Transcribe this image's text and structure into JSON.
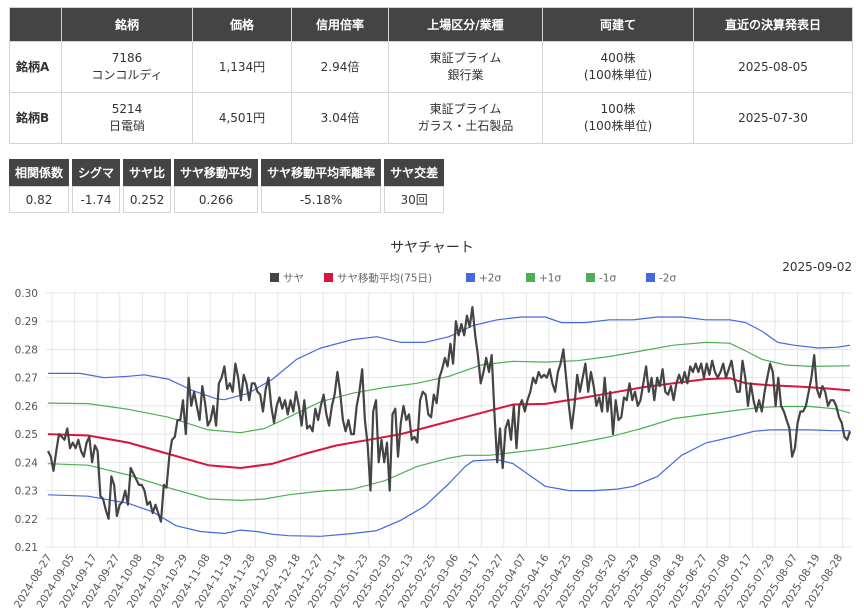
{
  "stock_table": {
    "headers": [
      "",
      "銘柄",
      "価格",
      "信用倍率",
      "上場区分/業種",
      "両建て",
      "直近の決算発表日"
    ],
    "rows": [
      {
        "label": "銘柄A",
        "code": "7186",
        "name": "コンコルディ",
        "price": "1,134円",
        "margin_ratio": "2.94倍",
        "market": "東証プライム",
        "industry": "銀行業",
        "hedge": "400株",
        "hedge_unit": "(100株単位)",
        "earnings_date": "2025-08-05"
      },
      {
        "label": "銘柄B",
        "code": "5214",
        "name": "日電硝",
        "price": "4,501円",
        "margin_ratio": "3.04倍",
        "market": "東証プライム",
        "industry": "ガラス・土石製品",
        "hedge": "100株",
        "hedge_unit": "(100株単位)",
        "earnings_date": "2025-07-30"
      }
    ]
  },
  "stats": [
    {
      "label": "相関係数",
      "value": "0.82"
    },
    {
      "label": "シグマ",
      "value": "-1.74"
    },
    {
      "label": "サヤ比",
      "value": "0.252"
    },
    {
      "label": "サヤ移動平均",
      "value": "0.266"
    },
    {
      "label": "サヤ移動平均乖離率",
      "value": "-5.18%"
    },
    {
      "label": "サヤ交差",
      "value": "30回"
    }
  ],
  "chart_data": {
    "type": "line",
    "title": "サヤチャート",
    "date_label": "2025-09-02",
    "ylim": [
      0.21,
      0.3
    ],
    "yticks": [
      "0.21",
      "0.22",
      "0.23",
      "0.24",
      "0.25",
      "0.26",
      "0.27",
      "0.28",
      "0.29",
      "0.30"
    ],
    "xticks": [
      "2024-08-27",
      "2024-09-05",
      "2024-09-17",
      "2024-09-27",
      "2024-10-08",
      "2024-10-18",
      "2024-10-29",
      "2024-11-08",
      "2024-11-19",
      "2024-11-28",
      "2024-12-09",
      "2024-12-18",
      "2024-12-27",
      "2025-01-14",
      "2025-01-23",
      "2025-02-03",
      "2025-02-13",
      "2025-02-25",
      "2025-03-06",
      "2025-03-17",
      "2025-03-27",
      "2025-04-07",
      "2025-04-16",
      "2025-04-25",
      "2025-05-09",
      "2025-05-20",
      "2025-05-29",
      "2025-06-09",
      "2025-06-18",
      "2025-06-27",
      "2025-07-08",
      "2025-07-17",
      "2025-07-29",
      "2025-08-07",
      "2025-08-19",
      "2025-08-28"
    ],
    "legend": [
      {
        "name": "サヤ",
        "color": "#444444"
      },
      {
        "name": "サヤ移動平均(75日)",
        "color": "#dc143c"
      },
      {
        "name": "+2σ",
        "color": "#4169e1"
      },
      {
        "name": "+1σ",
        "color": "#4caf50"
      },
      {
        "name": "-1σ",
        "color": "#4caf50"
      },
      {
        "name": "-2σ",
        "color": "#4169e1"
      }
    ],
    "series": [
      {
        "key": "saya",
        "color": "#444444",
        "width": 2.2,
        "values": [
          0.244,
          0.242,
          0.237,
          0.244,
          0.25,
          0.249,
          0.248,
          0.252,
          0.245,
          0.247,
          0.245,
          0.248,
          0.244,
          0.242,
          0.247,
          0.249,
          0.24,
          0.246,
          0.244,
          0.228,
          0.227,
          0.223,
          0.22,
          0.235,
          0.232,
          0.221,
          0.225,
          0.226,
          0.23,
          0.225,
          0.238,
          0.236,
          0.234,
          0.232,
          0.232,
          0.23,
          0.225,
          0.226,
          0.222,
          0.225,
          0.222,
          0.219,
          0.232,
          0.231,
          0.242,
          0.248,
          0.249,
          0.255,
          0.255,
          0.262,
          0.25,
          0.27,
          0.26,
          0.265,
          0.26,
          0.255,
          0.267,
          0.261,
          0.253,
          0.255,
          0.26,
          0.253,
          0.268,
          0.27,
          0.274,
          0.266,
          0.268,
          0.265,
          0.275,
          0.27,
          0.262,
          0.271,
          0.268,
          0.262,
          0.268,
          0.268,
          0.265,
          0.264,
          0.258,
          0.266,
          0.27,
          0.26,
          0.254,
          0.26,
          0.263,
          0.259,
          0.262,
          0.257,
          0.262,
          0.258,
          0.265,
          0.26,
          0.253,
          0.262,
          0.252,
          0.253,
          0.251,
          0.259,
          0.255,
          0.26,
          0.264,
          0.257,
          0.253,
          0.26,
          0.264,
          0.272,
          0.265,
          0.255,
          0.251,
          0.255,
          0.25,
          0.25,
          0.26,
          0.265,
          0.273,
          0.255,
          0.246,
          0.23,
          0.258,
          0.262,
          0.24,
          0.248,
          0.24,
          0.247,
          0.23,
          0.257,
          0.259,
          0.242,
          0.254,
          0.26,
          0.255,
          0.257,
          0.248,
          0.249,
          0.247,
          0.262,
          0.265,
          0.264,
          0.257,
          0.256,
          0.264,
          0.261,
          0.27,
          0.273,
          0.277,
          0.274,
          0.282,
          0.275,
          0.29,
          0.285,
          0.289,
          0.285,
          0.292,
          0.288,
          0.295,
          0.285,
          0.278,
          0.268,
          0.272,
          0.277,
          0.272,
          0.278,
          0.257,
          0.24,
          0.252,
          0.238,
          0.252,
          0.255,
          0.248,
          0.26,
          0.245,
          0.26,
          0.262,
          0.258,
          0.262,
          0.265,
          0.27,
          0.268,
          0.272,
          0.27,
          0.271,
          0.27,
          0.273,
          0.268,
          0.265,
          0.272,
          0.275,
          0.28,
          0.27,
          0.26,
          0.252,
          0.26,
          0.271,
          0.265,
          0.27,
          0.275,
          0.265,
          0.272,
          0.267,
          0.26,
          0.263,
          0.258,
          0.27,
          0.258,
          0.265,
          0.25,
          0.262,
          0.255,
          0.256,
          0.263,
          0.262,
          0.268,
          0.262,
          0.265,
          0.26,
          0.262,
          0.268,
          0.274,
          0.265,
          0.27,
          0.262,
          0.27,
          0.267,
          0.273,
          0.265,
          0.264,
          0.267,
          0.262,
          0.268,
          0.271,
          0.268,
          0.272,
          0.268,
          0.274,
          0.272,
          0.275,
          0.272,
          0.275,
          0.27,
          0.275,
          0.271,
          0.276,
          0.272,
          0.27,
          0.272,
          0.275,
          0.27,
          0.273,
          0.276,
          0.27,
          0.265,
          0.265,
          0.276,
          0.27,
          0.26,
          0.268,
          0.262,
          0.258,
          0.262,
          0.258,
          0.265,
          0.27,
          0.275,
          0.272,
          0.26,
          0.27,
          0.26,
          0.258,
          0.255,
          0.252,
          0.242,
          0.245,
          0.254,
          0.258,
          0.258,
          0.26,
          0.265,
          0.27,
          0.278,
          0.266,
          0.263,
          0.267,
          0.265,
          0.26,
          0.262,
          0.262,
          0.26,
          0.256,
          0.254,
          0.249,
          0.248,
          0.251
        ]
      },
      {
        "key": "ma",
        "color": "#dc143c",
        "width": 2,
        "anchors": [
          [
            0,
            0.25
          ],
          [
            0.05,
            0.2495
          ],
          [
            0.1,
            0.247
          ],
          [
            0.15,
            0.243
          ],
          [
            0.2,
            0.239
          ],
          [
            0.24,
            0.238
          ],
          [
            0.28,
            0.2395
          ],
          [
            0.32,
            0.243
          ],
          [
            0.36,
            0.246
          ],
          [
            0.4,
            0.248
          ],
          [
            0.44,
            0.25
          ],
          [
            0.48,
            0.253
          ],
          [
            0.52,
            0.256
          ],
          [
            0.56,
            0.259
          ],
          [
            0.58,
            0.2605
          ],
          [
            0.62,
            0.2607
          ],
          [
            0.66,
            0.2625
          ],
          [
            0.7,
            0.2645
          ],
          [
            0.74,
            0.2665
          ],
          [
            0.78,
            0.268
          ],
          [
            0.82,
            0.2695
          ],
          [
            0.85,
            0.2698
          ],
          [
            0.87,
            0.268
          ],
          [
            0.9,
            0.2673
          ],
          [
            0.94,
            0.2668
          ],
          [
            0.97,
            0.2662
          ],
          [
            1.0,
            0.2655
          ]
        ]
      },
      {
        "key": "p2",
        "color": "#4169e1",
        "width": 1.2,
        "anchors": [
          [
            0,
            0.2715
          ],
          [
            0.04,
            0.2715
          ],
          [
            0.07,
            0.27
          ],
          [
            0.1,
            0.2705
          ],
          [
            0.12,
            0.271
          ],
          [
            0.15,
            0.2695
          ],
          [
            0.18,
            0.2655
          ],
          [
            0.21,
            0.2625
          ],
          [
            0.22,
            0.2622
          ],
          [
            0.25,
            0.2645
          ],
          [
            0.28,
            0.2695
          ],
          [
            0.31,
            0.2765
          ],
          [
            0.34,
            0.2805
          ],
          [
            0.38,
            0.2835
          ],
          [
            0.41,
            0.2845
          ],
          [
            0.44,
            0.2825
          ],
          [
            0.47,
            0.2825
          ],
          [
            0.5,
            0.2845
          ],
          [
            0.53,
            0.2885
          ],
          [
            0.56,
            0.2905
          ],
          [
            0.59,
            0.2915
          ],
          [
            0.62,
            0.2915
          ],
          [
            0.64,
            0.2895
          ],
          [
            0.67,
            0.2895
          ],
          [
            0.7,
            0.2905
          ],
          [
            0.73,
            0.2905
          ],
          [
            0.76,
            0.2915
          ],
          [
            0.79,
            0.2915
          ],
          [
            0.82,
            0.2905
          ],
          [
            0.85,
            0.2905
          ],
          [
            0.87,
            0.2895
          ],
          [
            0.89,
            0.2865
          ],
          [
            0.91,
            0.2825
          ],
          [
            0.93,
            0.2815
          ],
          [
            0.96,
            0.2805
          ],
          [
            0.985,
            0.2808
          ],
          [
            1.0,
            0.2815
          ]
        ]
      },
      {
        "key": "p1",
        "color": "#4caf50",
        "width": 1.2,
        "anchors": [
          [
            0,
            0.261
          ],
          [
            0.05,
            0.2608
          ],
          [
            0.1,
            0.2588
          ],
          [
            0.15,
            0.256
          ],
          [
            0.2,
            0.2515
          ],
          [
            0.24,
            0.2505
          ],
          [
            0.27,
            0.252
          ],
          [
            0.3,
            0.256
          ],
          [
            0.34,
            0.2615
          ],
          [
            0.38,
            0.2645
          ],
          [
            0.42,
            0.2665
          ],
          [
            0.46,
            0.268
          ],
          [
            0.5,
            0.2705
          ],
          [
            0.54,
            0.2745
          ],
          [
            0.58,
            0.2758
          ],
          [
            0.62,
            0.2755
          ],
          [
            0.66,
            0.276
          ],
          [
            0.7,
            0.2775
          ],
          [
            0.74,
            0.2795
          ],
          [
            0.78,
            0.2815
          ],
          [
            0.82,
            0.2825
          ],
          [
            0.85,
            0.2822
          ],
          [
            0.87,
            0.2795
          ],
          [
            0.89,
            0.2765
          ],
          [
            0.92,
            0.2745
          ],
          [
            0.95,
            0.274
          ],
          [
            1.0,
            0.2742
          ]
        ]
      },
      {
        "key": "m1",
        "color": "#4caf50",
        "width": 1.2,
        "anchors": [
          [
            0,
            0.2395
          ],
          [
            0.05,
            0.239
          ],
          [
            0.1,
            0.2355
          ],
          [
            0.15,
            0.231
          ],
          [
            0.2,
            0.227
          ],
          [
            0.24,
            0.2265
          ],
          [
            0.27,
            0.227
          ],
          [
            0.3,
            0.2285
          ],
          [
            0.34,
            0.2298
          ],
          [
            0.38,
            0.2305
          ],
          [
            0.42,
            0.2335
          ],
          [
            0.46,
            0.2385
          ],
          [
            0.5,
            0.2415
          ],
          [
            0.52,
            0.2425
          ],
          [
            0.55,
            0.2425
          ],
          [
            0.58,
            0.2435
          ],
          [
            0.62,
            0.2448
          ],
          [
            0.66,
            0.2468
          ],
          [
            0.7,
            0.249
          ],
          [
            0.74,
            0.252
          ],
          [
            0.78,
            0.2555
          ],
          [
            0.82,
            0.257
          ],
          [
            0.86,
            0.2585
          ],
          [
            0.89,
            0.2595
          ],
          [
            0.92,
            0.2598
          ],
          [
            0.95,
            0.2598
          ],
          [
            0.98,
            0.259
          ],
          [
            1.0,
            0.2575
          ]
        ]
      },
      {
        "key": "m2",
        "color": "#4169e1",
        "width": 1.2,
        "anchors": [
          [
            0,
            0.2285
          ],
          [
            0.05,
            0.228
          ],
          [
            0.1,
            0.2255
          ],
          [
            0.13,
            0.2225
          ],
          [
            0.16,
            0.2175
          ],
          [
            0.19,
            0.2155
          ],
          [
            0.22,
            0.2148
          ],
          [
            0.24,
            0.216
          ],
          [
            0.26,
            0.2155
          ],
          [
            0.28,
            0.2145
          ],
          [
            0.3,
            0.214
          ],
          [
            0.34,
            0.2138
          ],
          [
            0.38,
            0.2148
          ],
          [
            0.41,
            0.2158
          ],
          [
            0.44,
            0.2195
          ],
          [
            0.47,
            0.2245
          ],
          [
            0.5,
            0.2325
          ],
          [
            0.52,
            0.2385
          ],
          [
            0.53,
            0.2405
          ],
          [
            0.56,
            0.241
          ],
          [
            0.58,
            0.2395
          ],
          [
            0.6,
            0.2355
          ],
          [
            0.62,
            0.2315
          ],
          [
            0.65,
            0.23
          ],
          [
            0.68,
            0.23
          ],
          [
            0.71,
            0.2305
          ],
          [
            0.73,
            0.2315
          ],
          [
            0.76,
            0.235
          ],
          [
            0.79,
            0.2425
          ],
          [
            0.82,
            0.2468
          ],
          [
            0.85,
            0.2488
          ],
          [
            0.88,
            0.251
          ],
          [
            0.9,
            0.2515
          ],
          [
            0.92,
            0.2515
          ],
          [
            0.95,
            0.2515
          ],
          [
            0.98,
            0.2512
          ],
          [
            1.0,
            0.2512
          ]
        ]
      }
    ]
  }
}
